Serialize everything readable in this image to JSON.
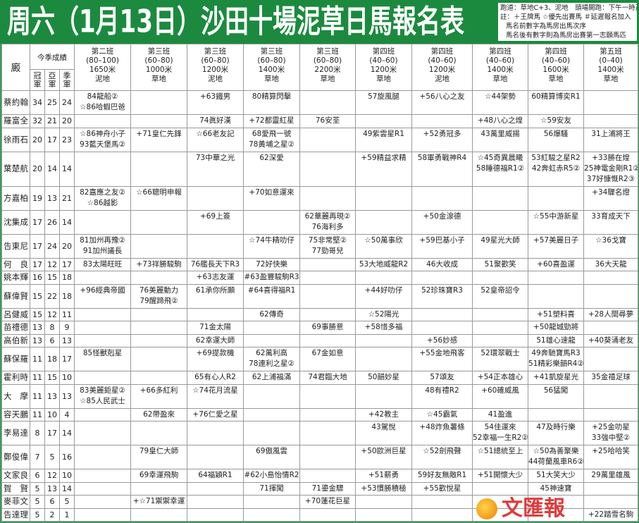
{
  "title": "周六（1月13日）沙田十場泥草日馬報名表",
  "notes": {
    "line1": "跑道：草地C+3、泥地　頭場開跑：下午一時正",
    "line2": "註：＋王牌馬 ☆優先出賽馬 ＃延遲報名加入",
    "line3": "馬名前數字為馬房出馬次序",
    "line4": "馬名後有數字則為馬房出賽第一志願馬匹"
  },
  "header": {
    "jockey": "廄",
    "season": "今季成績",
    "stats": [
      "冠軍",
      "亞軍",
      "季軍"
    ],
    "races": [
      [
        "第二班",
        "(80–100)",
        "1650米",
        "泥地"
      ],
      [
        "第三班",
        "(60–80)",
        "1000米",
        "草地"
      ],
      [
        "第三班",
        "(60–80)",
        "1200米",
        "泥地"
      ],
      [
        "第三班",
        "(60–80)",
        "1400米",
        "草地"
      ],
      [
        "第三班",
        "(60–80)",
        "2200米",
        "草地"
      ],
      [
        "第四班",
        "(40–60)",
        "1200米",
        "草地"
      ],
      [
        "第四班",
        "(40–60)",
        "1200米",
        "泥地"
      ],
      [
        "第四班",
        "(40–60)",
        "1400米",
        "草地"
      ],
      [
        "第四班",
        "(40–60)",
        "1600米",
        "草地"
      ],
      [
        "第五班",
        "(0–40)",
        "1400米",
        "草地"
      ]
    ]
  },
  "rows": [
    {
      "name": "蔡約翰",
      "stats": [
        "34",
        "25",
        "24"
      ],
      "cells": [
        [
          "84龍船②",
          "☆86哈蝦巴爸"
        ],
        [],
        [
          "+63鐵男"
        ],
        [
          "80精算閃擊"
        ],
        [],
        [
          "57旋風腿"
        ],
        [
          "+56八心之友"
        ],
        [
          "☆44架勢"
        ],
        [
          "60精算博奕R1"
        ],
        []
      ]
    },
    {
      "name": "羅富全",
      "stats": [
        "32",
        "21",
        "20"
      ],
      "cells": [
        [],
        [],
        [
          "74眞好漢"
        ],
        [
          "+72都靈紅星"
        ],
        [
          "76安荃"
        ],
        [],
        [],
        [
          "+48八心之煌"
        ],
        [
          "☆59安友"
        ],
        []
      ]
    },
    {
      "name": "徐雨石",
      "stats": [
        "20",
        "17",
        "23"
      ],
      "cells": [
        [
          "☆86神舟小子",
          "93藍天堡馬②"
        ],
        [
          "+71皇仁先鋒"
        ],
        [
          "☆66老友記"
        ],
        [
          "68愛飛一號",
          "78黃埔之星②"
        ],
        [],
        [
          "49紫雲星R1"
        ],
        [
          "+52勇冠多"
        ],
        [
          "43萬里威揚"
        ],
        [
          "56爆騷"
        ],
        [
          "31上浦將王"
        ]
      ]
    },
    {
      "name": "葉楚航",
      "stats": [
        "20",
        "14",
        "14"
      ],
      "cells": [
        [],
        [],
        [
          "73中華之光"
        ],
        [
          "62深愛"
        ],
        [],
        [
          "+59精益求精"
        ],
        [
          "58軍勇戰神R4"
        ],
        [
          "☆45奇異晨曦",
          "58睡德福R1②"
        ],
        [
          "53紅駿之星R2",
          "42奔虹赤R5②"
        ],
        [
          "+33勝在煌",
          "25神電金剛R1②",
          "37好慷慨R2③"
        ]
      ]
    },
    {
      "name": "方嘉柏",
      "stats": [
        "19",
        "13",
        "21"
      ],
      "cells": [
        [
          "82嘉應之友②",
          "☆86越影"
        ],
        [
          "☆66聰明申報"
        ],
        [],
        [
          "+70如意運來"
        ],
        [],
        [],
        [],
        [],
        [],
        [
          "+34驟名燈"
        ]
      ]
    },
    {
      "name": "沈集成",
      "stats": [
        "17",
        "26",
        "14"
      ],
      "cells": [
        [],
        [],
        [
          "+69上簽"
        ],
        [],
        [
          "62華麗再現②",
          "76海利多"
        ],
        [],
        [
          "+50金湶德"
        ],
        [],
        [
          "☆55中游新星"
        ],
        [
          "33育成天下"
        ]
      ]
    },
    {
      "name": "告東尼",
      "stats": [
        "17",
        "24",
        "20"
      ],
      "cells": [
        [
          "81加州再豫②",
          "91加州議長"
        ],
        [],
        [],
        [
          "☆74牛精叻仔"
        ],
        [
          "75非常堅②",
          "77勁哥兒"
        ],
        [
          "☆50萬事欣"
        ],
        [
          "+59巴基小子"
        ],
        [
          "49星光大師"
        ],
        [
          "+57美麗日子"
        ],
        [
          "☆36戈寶"
        ]
      ]
    },
    {
      "name": "何　良",
      "stats": [
        "17",
        "12",
        "17"
      ],
      "cells": [
        [
          "83太陽旺旺"
        ],
        [
          "+73祥勝駿駒"
        ],
        [
          "76艦長天下R3"
        ],
        [
          "72好快樂"
        ],
        [],
        [
          "53大地威龍R2"
        ],
        [
          "46大收成"
        ],
        [
          "51聚歡笑"
        ],
        [
          "+60喜盈運"
        ],
        [
          "36大天龍"
        ]
      ]
    },
    {
      "name": "姚本輝",
      "stats": [
        "16",
        "15",
        "18"
      ],
      "cells": [
        [],
        [],
        [
          "+63志友運"
        ],
        [
          "#63盈豐駿駒R3"
        ],
        [],
        [],
        [],
        [],
        [],
        []
      ]
    },
    {
      "name": "蘇偉賢",
      "stats": [
        "15",
        "22",
        "18"
      ],
      "cells": [
        [
          "+96經典帝國"
        ],
        [
          "76美麗動力",
          "79醒蹄飛②"
        ],
        [
          "61承你所願"
        ],
        [
          "#64喜得福R1"
        ],
        [],
        [
          "+44好叻仔"
        ],
        [
          "52珍珠寶R3"
        ],
        [
          "52皇帝詔令"
        ],
        [],
        []
      ]
    },
    {
      "name": "呂健威",
      "stats": [
        "15",
        "12",
        "11"
      ],
      "cells": [
        [],
        [],
        [],
        [
          "62傳奇"
        ],
        [],
        [
          "☆52陽光"
        ],
        [],
        [],
        [
          "+51塑料喜"
        ],
        [
          "+28人間尋夢"
        ]
      ]
    },
    {
      "name": "苗禮德",
      "stats": [
        "13",
        "8",
        "9"
      ],
      "cells": [
        [],
        [],
        [
          "71金太陽"
        ],
        [],
        [
          "69事勝意"
        ],
        [
          "+58惜多福"
        ],
        [],
        [],
        [
          "+50龍城勁將"
        ],
        []
      ]
    },
    {
      "name": "高伯新",
      "stats": [
        "13",
        "6",
        "13"
      ],
      "cells": [
        [],
        [],
        [
          "62幸運大師"
        ],
        [],
        [],
        [],
        [
          "+56妙感"
        ],
        [],
        [
          "51雄心速龍"
        ],
        [
          "+40葵涌老友"
        ]
      ]
    },
    {
      "name": "蘇保羅",
      "stats": [
        "11",
        "18",
        "17"
      ],
      "cells": [
        [
          "85怪獸剋星"
        ],
        [],
        [
          "+69提款機"
        ],
        [
          "62萬利高",
          "78連利之星②"
        ],
        [
          "67金如意"
        ],
        [],
        [
          "+55金地飛客"
        ],
        [
          "52環翠戰士"
        ],
        [
          "49奔馳寶馬R3",
          "51精彩樂韻R4②"
        ],
        []
      ]
    },
    {
      "name": "霍利時",
      "stats": [
        "11",
        "15",
        "10"
      ],
      "cells": [
        [],
        [],
        [
          "65有心人R2"
        ],
        [
          "62上浦福滿"
        ],
        [
          "74君臨大地"
        ],
        [
          "50韻妙星"
        ],
        [
          "57頌友"
        ],
        [
          "+54正本雄心"
        ],
        [
          "+41凱旋星光"
        ],
        [
          "35金禧足球"
        ]
      ]
    },
    {
      "name": "大　摩",
      "stats": [
        "11",
        "13",
        "13"
      ],
      "cells": [
        [
          "83美麗鉅星②",
          "☆85人民武士"
        ],
        [
          "+66多紅利"
        ],
        [
          "☆74花月流星"
        ],
        [],
        [],
        [],
        [
          "48有禮R2"
        ],
        [
          "+60確威風"
        ],
        [
          "56猛闖"
        ],
        []
      ]
    },
    {
      "name": "容天鵬",
      "stats": [
        "11",
        "10",
        "4"
      ],
      "cells": [
        [],
        [
          "62帶盈來"
        ],
        [
          "+76仁愛之星"
        ],
        [],
        [],
        [
          "+42教主"
        ],
        [
          "☆45霸氣"
        ],
        [
          "41盈進"
        ],
        [],
        []
      ]
    },
    {
      "name": "李易達",
      "stats": [
        "8",
        "17",
        "14"
      ],
      "cells": [
        [],
        [],
        [],
        [],
        [],
        [
          "43駕悅"
        ],
        [
          "+48炸魚薯條"
        ],
        [
          "54佳運來",
          "52幸福一生R2②"
        ],
        [
          "47及時行樂"
        ],
        [
          "+25金叻星",
          "33強中堅②"
        ]
      ]
    },
    {
      "name": "鄭俊偉",
      "stats": [
        "7",
        "5",
        "16"
      ],
      "cells": [
        [],
        [
          "79皇仁大師"
        ],
        [],
        [
          "69傲風雲"
        ],
        [],
        [
          "+50歐洲巨星"
        ],
        [
          "☆52劍飛聲"
        ],
        [
          "☆51總統至上"
        ],
        [
          "☆50為善聚樂",
          "44荷蘭風車R6②"
        ],
        [
          "+25哈哈笑"
        ]
      ]
    },
    {
      "name": "文家良",
      "stats": [
        "6",
        "12",
        "10"
      ],
      "cells": [
        [],
        [
          "69幸運飛駒"
        ],
        [
          "64福穎R1"
        ],
        [
          "#62小島怡情R2"
        ],
        [],
        [
          "+51薪勇"
        ],
        [
          "59好友無敵R1"
        ],
        [
          "+51開懷大少"
        ],
        [
          "51大笑大少"
        ],
        [
          "29萬里雄風"
        ]
      ]
    },
    {
      "name": "賀　賢",
      "stats": [
        "5",
        "13",
        "14"
      ],
      "cells": [
        [],
        [],
        [],
        [
          "71揮闖"
        ],
        [
          "71鎏金驃"
        ],
        [
          "+53慣勝積極"
        ],
        [
          "+55歡悅星"
        ],
        [],
        [
          "45神速寶"
        ],
        []
      ]
    },
    {
      "name": "麥菲文",
      "stats": [
        "5",
        "6",
        "5"
      ],
      "cells": [
        [],
        [
          "+☆71禦禦幸運"
        ],
        [],
        [],
        [
          "+70蓮花巨星"
        ],
        [],
        [],
        [],
        [],
        []
      ]
    },
    {
      "name": "告達理",
      "stats": [
        "5",
        "2",
        "1"
      ],
      "cells": [
        [],
        [],
        [],
        [],
        [],
        [],
        [],
        [],
        [],
        [
          "+22踏雪名駒"
        ]
      ]
    }
  ],
  "logo": {
    "text": "文匯報",
    "color": "#e03a3a"
  },
  "colors": {
    "title_bg": "#1b8a3e",
    "border": "#999999"
  }
}
